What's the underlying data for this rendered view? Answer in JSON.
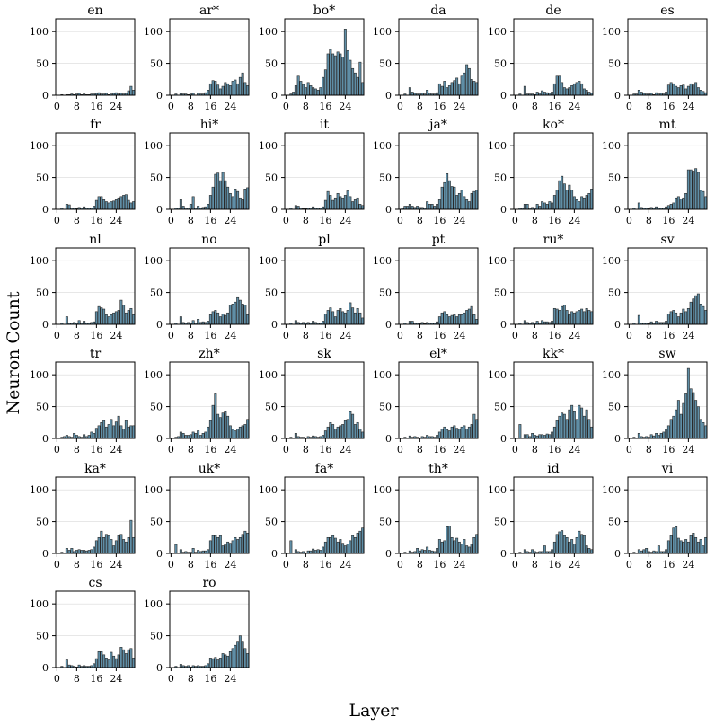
{
  "chart_data": {
    "type": "bar",
    "layout": "grid of small multiples, 6 columns",
    "xlabel": "Layer",
    "ylabel": "Neuron Count",
    "ylim": [
      0,
      120
    ],
    "yticks": [
      0,
      50,
      100
    ],
    "xticks": [
      0,
      8,
      16,
      24
    ],
    "x": [
      0,
      1,
      2,
      3,
      4,
      5,
      6,
      7,
      8,
      9,
      10,
      11,
      12,
      13,
      14,
      15,
      16,
      17,
      18,
      19,
      20,
      21,
      22,
      23,
      24,
      25,
      26,
      27,
      28,
      29,
      30,
      31
    ],
    "series": [
      {
        "name": "en",
        "values": [
          0,
          0,
          1,
          0,
          1,
          1,
          2,
          1,
          2,
          3,
          1,
          2,
          1,
          1,
          2,
          2,
          3,
          4,
          2,
          2,
          3,
          1,
          2,
          3,
          4,
          2,
          3,
          2,
          3,
          7,
          14,
          8
        ]
      },
      {
        "name": "ar*",
        "values": [
          0,
          0,
          2,
          0,
          3,
          2,
          2,
          1,
          2,
          3,
          0,
          3,
          2,
          2,
          4,
          8,
          18,
          23,
          22,
          16,
          10,
          14,
          20,
          18,
          15,
          22,
          24,
          18,
          28,
          35,
          20,
          15
        ]
      },
      {
        "name": "bo*",
        "values": [
          0,
          0,
          2,
          5,
          15,
          30,
          22,
          17,
          12,
          20,
          15,
          12,
          10,
          8,
          12,
          28,
          40,
          65,
          72,
          65,
          62,
          68,
          65,
          60,
          104,
          70,
          55,
          42,
          35,
          28,
          52,
          20
        ]
      },
      {
        "name": "da",
        "values": [
          0,
          0,
          2,
          0,
          12,
          5,
          3,
          2,
          2,
          3,
          2,
          8,
          3,
          2,
          2,
          4,
          18,
          14,
          22,
          12,
          15,
          20,
          23,
          27,
          18,
          30,
          35,
          48,
          42,
          25,
          22,
          20
        ]
      },
      {
        "name": "de",
        "values": [
          0,
          0,
          2,
          0,
          14,
          2,
          2,
          2,
          1,
          5,
          3,
          7,
          5,
          4,
          3,
          5,
          18,
          30,
          30,
          20,
          12,
          10,
          12,
          15,
          18,
          20,
          22,
          18,
          10,
          8,
          5,
          3
        ]
      },
      {
        "name": "es",
        "values": [
          0,
          0,
          2,
          2,
          8,
          5,
          3,
          2,
          2,
          3,
          1,
          4,
          2,
          3,
          2,
          5,
          16,
          20,
          18,
          14,
          12,
          15,
          16,
          10,
          14,
          18,
          16,
          20,
          12,
          8,
          6,
          4
        ]
      },
      {
        "name": "fr",
        "values": [
          0,
          0,
          2,
          0,
          8,
          7,
          2,
          2,
          1,
          3,
          2,
          4,
          2,
          2,
          2,
          5,
          14,
          20,
          20,
          15,
          12,
          10,
          12,
          13,
          15,
          18,
          20,
          22,
          23,
          14,
          10,
          12
        ]
      },
      {
        "name": "hi*",
        "values": [
          0,
          0,
          2,
          2,
          15,
          5,
          2,
          2,
          8,
          20,
          2,
          5,
          2,
          3,
          4,
          8,
          22,
          35,
          55,
          57,
          45,
          58,
          45,
          35,
          25,
          20,
          32,
          28,
          18,
          15,
          32,
          34
        ]
      },
      {
        "name": "it",
        "values": [
          0,
          0,
          2,
          0,
          6,
          5,
          2,
          1,
          1,
          2,
          2,
          4,
          2,
          2,
          2,
          4,
          14,
          28,
          22,
          14,
          18,
          25,
          20,
          18,
          22,
          29,
          20,
          12,
          15,
          18,
          8,
          6
        ]
      },
      {
        "name": "ja*",
        "values": [
          0,
          2,
          5,
          5,
          8,
          5,
          3,
          5,
          3,
          3,
          2,
          12,
          8,
          8,
          5,
          8,
          15,
          35,
          42,
          56,
          45,
          36,
          35,
          22,
          25,
          30,
          20,
          15,
          12,
          25,
          28,
          30
        ]
      },
      {
        "name": "ko*",
        "values": [
          0,
          0,
          2,
          2,
          8,
          8,
          2,
          3,
          2,
          8,
          5,
          12,
          10,
          8,
          12,
          10,
          22,
          30,
          45,
          52,
          40,
          30,
          38,
          30,
          20,
          15,
          12,
          20,
          18,
          22,
          25,
          32
        ]
      },
      {
        "name": "mt",
        "values": [
          0,
          0,
          2,
          0,
          10,
          3,
          2,
          2,
          1,
          3,
          2,
          4,
          2,
          2,
          2,
          4,
          6,
          8,
          10,
          18,
          20,
          16,
          18,
          25,
          62,
          62,
          60,
          64,
          58,
          30,
          28,
          20
        ]
      },
      {
        "name": "nl",
        "values": [
          0,
          0,
          2,
          0,
          12,
          2,
          2,
          3,
          2,
          6,
          2,
          5,
          2,
          2,
          3,
          4,
          20,
          28,
          26,
          24,
          15,
          12,
          15,
          18,
          20,
          22,
          38,
          30,
          18,
          22,
          25,
          15
        ]
      },
      {
        "name": "no",
        "values": [
          0,
          0,
          2,
          0,
          12,
          3,
          2,
          3,
          2,
          6,
          2,
          8,
          3,
          4,
          3,
          5,
          15,
          20,
          22,
          18,
          12,
          16,
          14,
          18,
          30,
          32,
          35,
          42,
          38,
          32,
          30,
          15
        ]
      },
      {
        "name": "pl",
        "values": [
          0,
          0,
          2,
          0,
          6,
          3,
          2,
          3,
          2,
          3,
          2,
          5,
          3,
          2,
          2,
          5,
          16,
          22,
          26,
          20,
          12,
          22,
          25,
          20,
          18,
          22,
          34,
          26,
          18,
          25,
          18,
          10
        ]
      },
      {
        "name": "pt",
        "values": [
          0,
          0,
          2,
          0,
          5,
          5,
          2,
          2,
          1,
          3,
          1,
          3,
          2,
          2,
          2,
          4,
          12,
          18,
          20,
          15,
          12,
          14,
          15,
          12,
          15,
          15,
          18,
          22,
          24,
          28,
          15,
          8
        ]
      },
      {
        "name": "ru*",
        "values": [
          0,
          0,
          2,
          0,
          6,
          3,
          2,
          3,
          2,
          5,
          2,
          6,
          4,
          4,
          3,
          5,
          25,
          24,
          22,
          28,
          30,
          22,
          15,
          20,
          18,
          20,
          22,
          24,
          20,
          25,
          22,
          20
        ]
      },
      {
        "name": "sv",
        "values": [
          0,
          0,
          2,
          0,
          14,
          2,
          2,
          2,
          1,
          4,
          2,
          5,
          3,
          3,
          3,
          5,
          16,
          20,
          22,
          18,
          12,
          18,
          24,
          20,
          25,
          35,
          40,
          45,
          48,
          32,
          28,
          22
        ]
      },
      {
        "name": "tr",
        "values": [
          0,
          0,
          2,
          3,
          5,
          3,
          2,
          8,
          5,
          3,
          2,
          6,
          3,
          5,
          10,
          8,
          16,
          20,
          25,
          28,
          18,
          22,
          30,
          20,
          26,
          35,
          20,
          15,
          28,
          18,
          20,
          20
        ]
      },
      {
        "name": "zh*",
        "values": [
          0,
          0,
          2,
          3,
          10,
          8,
          5,
          5,
          6,
          10,
          8,
          12,
          5,
          8,
          10,
          18,
          28,
          52,
          70,
          38,
          33,
          40,
          42,
          35,
          20,
          15,
          12,
          15,
          18,
          20,
          22,
          30
        ]
      },
      {
        "name": "sk",
        "values": [
          0,
          0,
          2,
          0,
          8,
          3,
          2,
          2,
          1,
          3,
          2,
          4,
          3,
          2,
          3,
          5,
          12,
          18,
          25,
          22,
          15,
          18,
          20,
          22,
          28,
          30,
          42,
          38,
          22,
          25,
          15,
          10
        ]
      },
      {
        "name": "el*",
        "values": [
          0,
          0,
          2,
          0,
          4,
          2,
          3,
          2,
          1,
          3,
          2,
          5,
          3,
          3,
          2,
          5,
          10,
          15,
          18,
          14,
          12,
          18,
          20,
          16,
          15,
          18,
          20,
          15,
          18,
          22,
          38,
          30
        ]
      },
      {
        "name": "kk*",
        "values": [
          0,
          0,
          22,
          0,
          6,
          6,
          3,
          8,
          5,
          4,
          6,
          6,
          5,
          7,
          6,
          10,
          18,
          28,
          35,
          40,
          38,
          30,
          45,
          52,
          42,
          30,
          52,
          48,
          35,
          45,
          30,
          18
        ]
      },
      {
        "name": "sw",
        "values": [
          0,
          0,
          2,
          0,
          8,
          3,
          2,
          3,
          2,
          6,
          4,
          8,
          5,
          8,
          10,
          15,
          20,
          30,
          35,
          45,
          60,
          38,
          55,
          70,
          110,
          78,
          72,
          60,
          50,
          30,
          25,
          20
        ]
      },
      {
        "name": "ka*",
        "values": [
          0,
          0,
          2,
          0,
          8,
          5,
          8,
          3,
          5,
          6,
          5,
          5,
          4,
          5,
          6,
          10,
          20,
          25,
          35,
          25,
          30,
          28,
          22,
          12,
          20,
          28,
          30,
          22,
          18,
          25,
          52,
          25
        ]
      },
      {
        "name": "uk*",
        "values": [
          0,
          0,
          14,
          0,
          6,
          2,
          3,
          2,
          2,
          8,
          2,
          5,
          3,
          4,
          4,
          6,
          20,
          28,
          28,
          25,
          28,
          12,
          15,
          18,
          16,
          20,
          25,
          22,
          25,
          30,
          35,
          32
        ]
      },
      {
        "name": "fa*",
        "values": [
          0,
          0,
          20,
          0,
          6,
          3,
          2,
          3,
          1,
          4,
          4,
          7,
          5,
          6,
          5,
          10,
          18,
          25,
          25,
          28,
          24,
          18,
          22,
          16,
          12,
          15,
          20,
          28,
          25,
          32,
          35,
          40
        ]
      },
      {
        "name": "th*",
        "values": [
          0,
          0,
          2,
          0,
          4,
          2,
          3,
          8,
          4,
          6,
          5,
          10,
          5,
          4,
          3,
          8,
          22,
          18,
          20,
          42,
          43,
          25,
          20,
          24,
          18,
          15,
          22,
          12,
          10,
          15,
          25,
          30
        ]
      },
      {
        "name": "id",
        "values": [
          0,
          0,
          2,
          0,
          6,
          3,
          2,
          6,
          3,
          2,
          3,
          3,
          12,
          3,
          3,
          6,
          18,
          30,
          34,
          36,
          28,
          25,
          18,
          22,
          15,
          25,
          35,
          30,
          28,
          12,
          8,
          6
        ]
      },
      {
        "name": "vi",
        "values": [
          0,
          0,
          2,
          0,
          6,
          4,
          6,
          8,
          3,
          2,
          4,
          3,
          12,
          3,
          3,
          6,
          20,
          28,
          40,
          42,
          24,
          20,
          18,
          22,
          18,
          28,
          32,
          25,
          18,
          22,
          12,
          25
        ]
      },
      {
        "name": "cs",
        "values": [
          0,
          0,
          2,
          0,
          12,
          4,
          3,
          2,
          1,
          4,
          2,
          3,
          2,
          2,
          3,
          6,
          14,
          25,
          25,
          20,
          15,
          12,
          24,
          18,
          14,
          20,
          32,
          28,
          22,
          28,
          30,
          15
        ]
      },
      {
        "name": "ro",
        "values": [
          0,
          0,
          2,
          0,
          5,
          3,
          2,
          3,
          1,
          3,
          2,
          3,
          2,
          2,
          3,
          6,
          15,
          14,
          16,
          12,
          15,
          22,
          20,
          18,
          25,
          30,
          35,
          40,
          50,
          40,
          30,
          22
        ]
      }
    ]
  }
}
